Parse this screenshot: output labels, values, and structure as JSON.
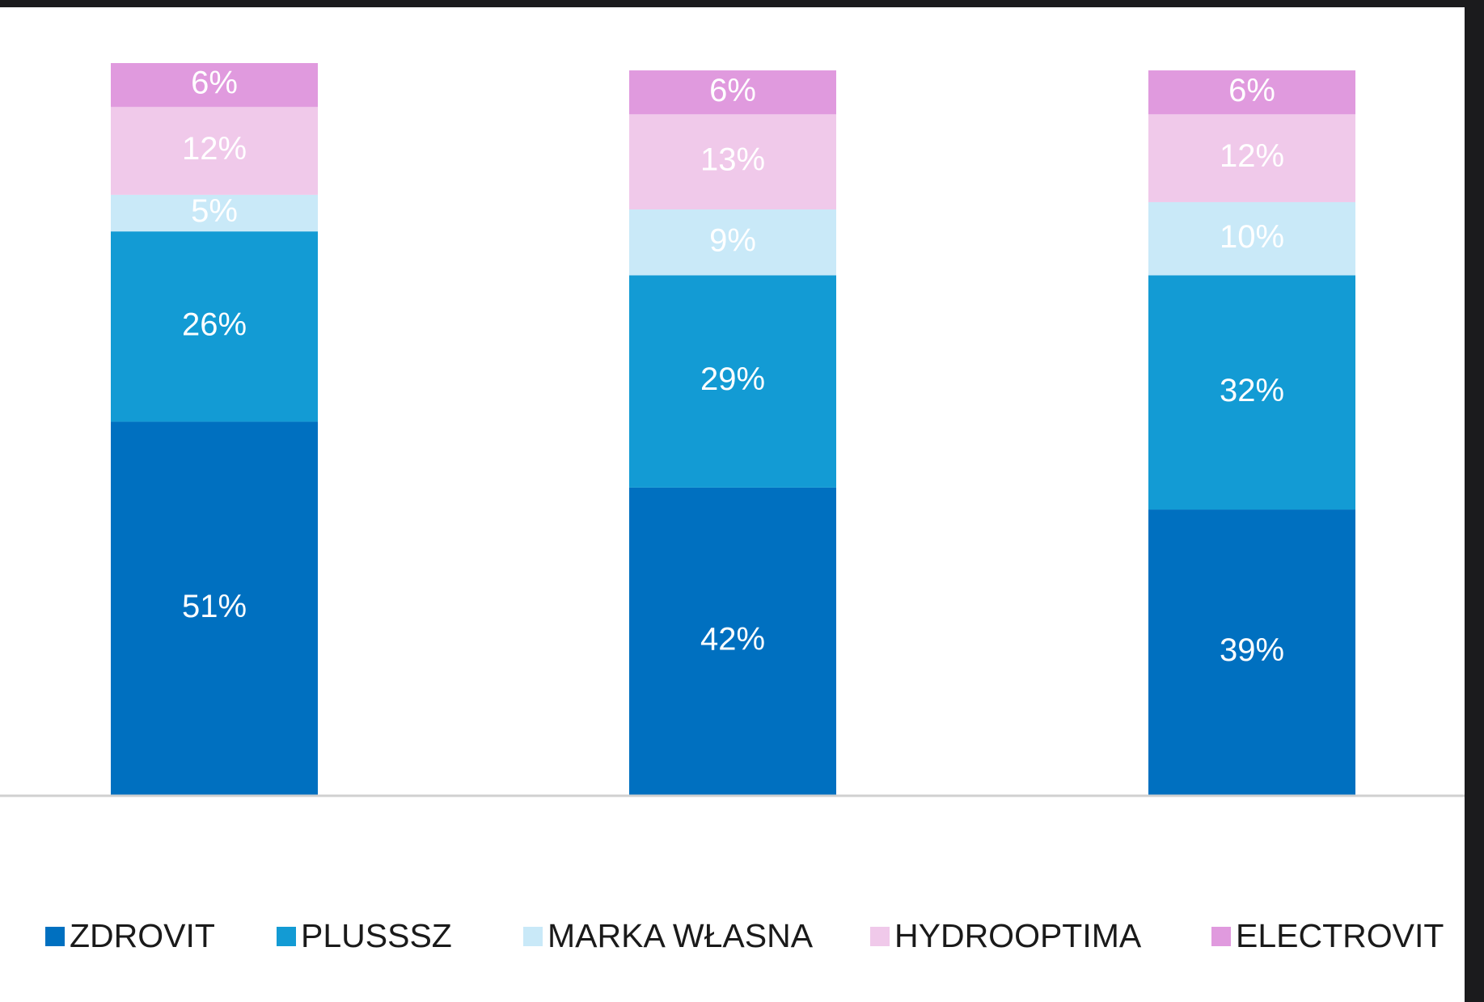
{
  "chart_data": {
    "type": "stacked_bar",
    "categories": [
      null,
      null,
      null
    ],
    "ylim": [
      0,
      100
    ],
    "series": [
      {
        "name": "ZDROVIT",
        "color": "#0070c0",
        "values": [
          51,
          42,
          39
        ],
        "value_labels": [
          "51%",
          "42%",
          "39%"
        ]
      },
      {
        "name": "PLUSSSZ",
        "color": "#139bd4",
        "values": [
          26,
          29,
          32
        ],
        "value_labels": [
          "26%",
          "29%",
          "32%"
        ]
      },
      {
        "name": "MARKA WŁASNA",
        "color": "#c9e9f8",
        "values": [
          5,
          9,
          10
        ],
        "value_labels": [
          "5%",
          "9%",
          "10%"
        ]
      },
      {
        "name": "HYDROOPTIMA",
        "color": "#f0c9ea",
        "values": [
          12,
          13,
          12
        ],
        "value_labels": [
          "12%",
          "13%",
          "12%"
        ]
      },
      {
        "name": "ELECTROVIT",
        "color": "#e09ade",
        "values": [
          6,
          6,
          6
        ],
        "value_labels": [
          "6%",
          "6%",
          "6%"
        ]
      }
    ],
    "legend": "bottom"
  }
}
